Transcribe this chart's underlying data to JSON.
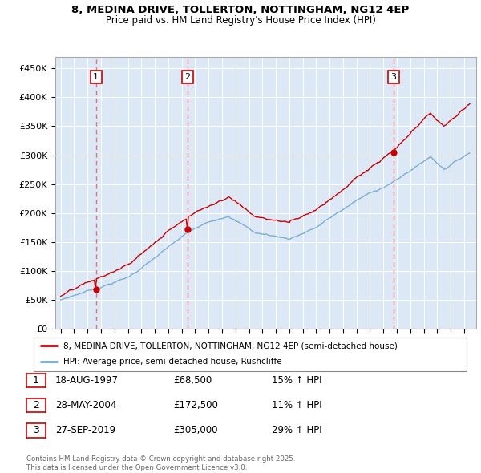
{
  "title1": "8, MEDINA DRIVE, TOLLERTON, NOTTINGHAM, NG12 4EP",
  "title2": "Price paid vs. HM Land Registry's House Price Index (HPI)",
  "background_color": "#ffffff",
  "plot_background": "#dce8f5",
  "grid_color": "#ffffff",
  "hpi_line_color": "#6fa8d0",
  "price_line_color": "#cc0000",
  "sale_marker_color": "#cc0000",
  "vline_color": "#e87070",
  "sale_dates_float": [
    1997.625,
    2004.4167,
    2019.75
  ],
  "sale_prices": [
    68500,
    172500,
    305000
  ],
  "sale_labels": [
    "1",
    "2",
    "3"
  ],
  "sale_info": [
    {
      "label": "1",
      "date": "18-AUG-1997",
      "price": "£68,500",
      "hpi": "15% ↑ HPI"
    },
    {
      "label": "2",
      "date": "28-MAY-2004",
      "price": "£172,500",
      "hpi": "11% ↑ HPI"
    },
    {
      "label": "3",
      "date": "27-SEP-2019",
      "price": "£305,000",
      "hpi": "29% ↑ HPI"
    }
  ],
  "legend_line1": "8, MEDINA DRIVE, TOLLERTON, NOTTINGHAM, NG12 4EP (semi-detached house)",
  "legend_line2": "HPI: Average price, semi-detached house, Rushcliffe",
  "footer": "Contains HM Land Registry data © Crown copyright and database right 2025.\nThis data is licensed under the Open Government Licence v3.0.",
  "ylim": [
    0,
    470000
  ],
  "yticks": [
    0,
    50000,
    100000,
    150000,
    200000,
    250000,
    300000,
    350000,
    400000,
    450000
  ],
  "ytick_labels": [
    "£0",
    "£50K",
    "£100K",
    "£150K",
    "£200K",
    "£250K",
    "£300K",
    "£350K",
    "£400K",
    "£450K"
  ]
}
